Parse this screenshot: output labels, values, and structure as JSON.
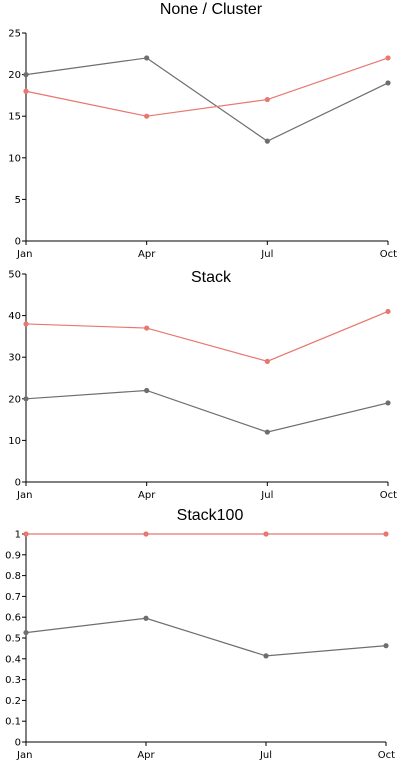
{
  "chart_data": [
    {
      "type": "line",
      "title": "None / Cluster",
      "categories": [
        "Jan",
        "Apr",
        "Jul",
        "Oct"
      ],
      "ylim": [
        0,
        25
      ],
      "yticks": [
        "0",
        "5",
        "10",
        "15",
        "20",
        "25"
      ],
      "series": [
        {
          "color": "#6e6e6e",
          "values": [
            20,
            22,
            12,
            19
          ]
        },
        {
          "color": "#e8776f",
          "values": [
            18,
            15,
            17,
            22
          ]
        }
      ]
    },
    {
      "type": "line",
      "title": "Stack",
      "categories": [
        "Jan",
        "Apr",
        "Jul",
        "Oct"
      ],
      "ylim": [
        0,
        50
      ],
      "yticks": [
        "0",
        "10",
        "20",
        "30",
        "40",
        "50"
      ],
      "series": [
        {
          "color": "#6e6e6e",
          "values": [
            20,
            22,
            12,
            19
          ]
        },
        {
          "color": "#e8776f",
          "values": [
            38,
            37,
            29,
            41
          ]
        }
      ]
    },
    {
      "type": "line",
      "title": "Stack100",
      "categories": [
        "Jan",
        "Apr",
        "Jul",
        "Oct"
      ],
      "ylim": [
        0,
        1
      ],
      "yticks": [
        "0",
        "0.1",
        "0.2",
        "0.3",
        "0.4",
        "0.5",
        "0.6",
        "0.7",
        "0.8",
        "0.9",
        "1"
      ],
      "series": [
        {
          "color": "#6e6e6e",
          "values": [
            0.526,
            0.595,
            0.414,
            0.463
          ]
        },
        {
          "color": "#e8776f",
          "values": [
            1,
            1,
            1,
            1
          ]
        }
      ]
    }
  ]
}
